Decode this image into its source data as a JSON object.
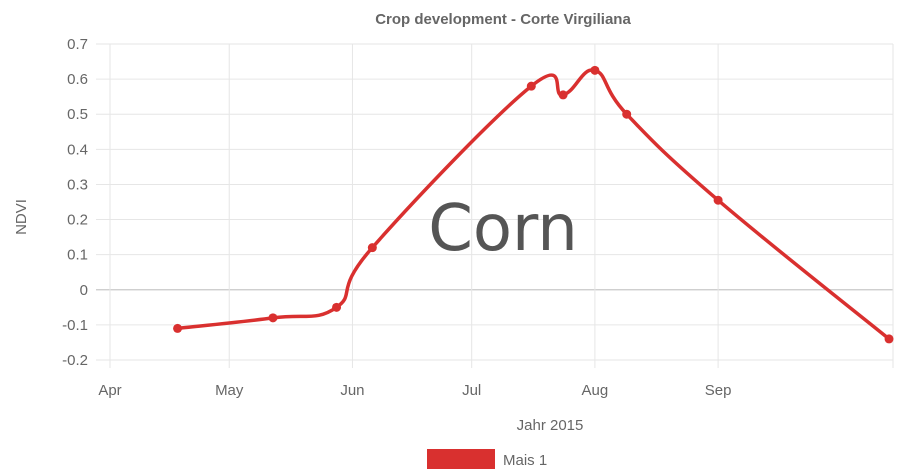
{
  "chart_data": {
    "type": "line",
    "title": "Crop development - Corte Virgiliana",
    "xlabel": "Jahr 2015",
    "ylabel": "NDVI",
    "ylim": [
      -0.2,
      0.7
    ],
    "yticks": [
      "0.7",
      "0.6",
      "0.5",
      "0.4",
      "0.3",
      "0.2",
      "0.1",
      "0",
      "-0.1",
      "-0.2"
    ],
    "ytick_values": [
      0.7,
      0.6,
      0.5,
      0.4,
      0.3,
      0.2,
      0.1,
      0,
      -0.1,
      -0.2
    ],
    "xlim": [
      "2015-04-01",
      "2015-10-15"
    ],
    "xticks": [
      {
        "label": "Apr",
        "date": "2015-04-01"
      },
      {
        "label": "May",
        "date": "2015-05-01"
      },
      {
        "label": "Jun",
        "date": "2015-06-01"
      },
      {
        "label": "Jul",
        "date": "2015-07-01"
      },
      {
        "label": "Aug",
        "date": "2015-08-01"
      },
      {
        "label": "Sep",
        "date": "2015-09-01"
      }
    ],
    "grid": true,
    "legend_position": "bottom",
    "series": [
      {
        "name": "Mais 1",
        "color": "#d9302f",
        "points": [
          {
            "x": "2015-04-18",
            "y": -0.11
          },
          {
            "x": "2015-05-12",
            "y": -0.08
          },
          {
            "x": "2015-05-28",
            "y": -0.05
          },
          {
            "x": "2015-06-06",
            "y": 0.12
          },
          {
            "x": "2015-07-16",
            "y": 0.58
          },
          {
            "x": "2015-07-24",
            "y": 0.555
          },
          {
            "x": "2015-08-01",
            "y": 0.625
          },
          {
            "x": "2015-08-09",
            "y": 0.5
          },
          {
            "x": "2015-09-01",
            "y": 0.255
          },
          {
            "x": "2015-10-14",
            "y": -0.14
          }
        ]
      }
    ]
  },
  "overlay_label": "Corn"
}
